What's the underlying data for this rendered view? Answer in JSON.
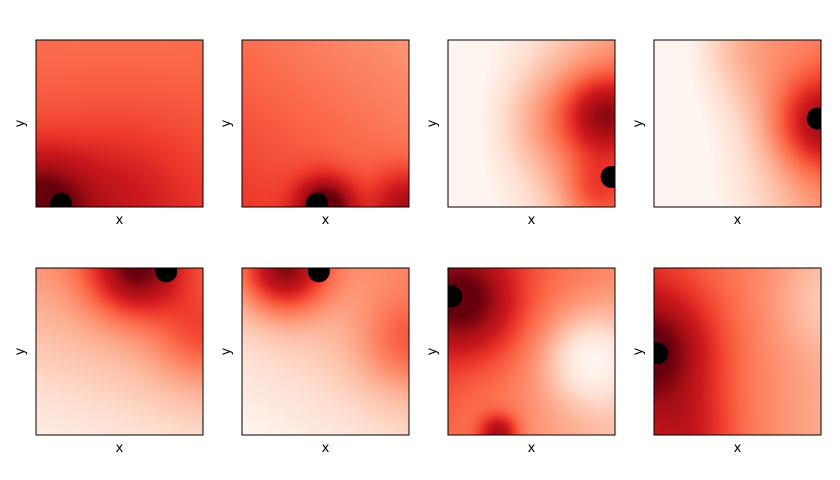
{
  "chart_data": [
    {
      "type": "heatmap",
      "xlabel": "x",
      "ylabel": "y",
      "colormap": "Reds",
      "grid": false,
      "marker": {
        "x": 0.15,
        "y": 0.02
      },
      "base": 0.55,
      "gradient": [
        0.0,
        -0.12
      ],
      "blobs": [
        {
          "x": 0.0,
          "y": 0.0,
          "a": 0.45,
          "s": 0.22
        },
        {
          "x": 0.5,
          "y": 0.05,
          "a": 0.15,
          "s": 0.3
        }
      ]
    },
    {
      "type": "heatmap",
      "xlabel": "x",
      "ylabel": "y",
      "colormap": "Reds",
      "grid": false,
      "marker": {
        "x": 0.45,
        "y": 0.02
      },
      "base": 0.5,
      "gradient": [
        -0.12,
        -0.15
      ],
      "blobs": [
        {
          "x": 0.5,
          "y": 0.0,
          "a": 0.55,
          "s": 0.12
        },
        {
          "x": 1.0,
          "y": 0.0,
          "a": 0.35,
          "s": 0.15
        }
      ]
    },
    {
      "type": "heatmap",
      "xlabel": "x",
      "ylabel": "y",
      "colormap": "Reds",
      "grid": false,
      "marker": {
        "x": 0.98,
        "y": 0.18
      },
      "base": 0.1,
      "gradient": [
        0.45,
        0.0
      ],
      "blobs": [
        {
          "x": 0.95,
          "y": 0.55,
          "a": 0.55,
          "s": 0.18
        },
        {
          "x": 0.6,
          "y": 0.5,
          "a": 0.2,
          "s": 0.25
        },
        {
          "x": 0.9,
          "y": 0.1,
          "a": 0.3,
          "s": 0.15
        }
      ]
    },
    {
      "type": "heatmap",
      "xlabel": "x",
      "ylabel": "y",
      "colormap": "Reds",
      "grid": false,
      "marker": {
        "x": 0.98,
        "y": 0.53
      },
      "base": 0.1,
      "gradient": [
        0.55,
        0.05
      ],
      "blobs": [
        {
          "x": 1.0,
          "y": 0.5,
          "a": 0.5,
          "s": 0.2
        },
        {
          "x": 0.55,
          "y": 0.95,
          "a": 0.15,
          "s": 0.25
        }
      ]
    },
    {
      "type": "heatmap",
      "xlabel": "x",
      "ylabel": "y",
      "colormap": "Reds",
      "grid": false,
      "marker": {
        "x": 0.78,
        "y": 0.98
      },
      "base": 0.25,
      "gradient": [
        0.1,
        0.3
      ],
      "blobs": [
        {
          "x": 0.6,
          "y": 1.0,
          "a": 0.6,
          "s": 0.2
        },
        {
          "x": 1.0,
          "y": 0.6,
          "a": 0.25,
          "s": 0.2
        }
      ]
    },
    {
      "type": "heatmap",
      "xlabel": "x",
      "ylabel": "y",
      "colormap": "Reds",
      "grid": false,
      "marker": {
        "x": 0.46,
        "y": 0.98
      },
      "base": 0.2,
      "gradient": [
        0.15,
        0.25
      ],
      "blobs": [
        {
          "x": 0.25,
          "y": 1.0,
          "a": 0.65,
          "s": 0.18
        },
        {
          "x": 1.0,
          "y": 0.55,
          "a": 0.25,
          "s": 0.2
        }
      ]
    },
    {
      "type": "heatmap",
      "xlabel": "x",
      "ylabel": "y",
      "colormap": "Reds",
      "grid": false,
      "marker": {
        "x": 0.02,
        "y": 0.83
      },
      "base": 0.45,
      "gradient": [
        -0.25,
        0.15
      ],
      "blobs": [
        {
          "x": 0.1,
          "y": 0.8,
          "a": 0.45,
          "s": 0.22
        },
        {
          "x": 0.3,
          "y": 0.0,
          "a": 0.45,
          "s": 0.08
        },
        {
          "x": 0.85,
          "y": 0.45,
          "a": -0.35,
          "s": 0.2
        }
      ]
    },
    {
      "type": "heatmap",
      "xlabel": "x",
      "ylabel": "y",
      "colormap": "Reds",
      "grid": false,
      "marker": {
        "x": 0.02,
        "y": 0.49
      },
      "base": 0.45,
      "gradient": [
        -0.3,
        0.0
      ],
      "blobs": [
        {
          "x": 0.0,
          "y": 0.5,
          "a": 0.45,
          "s": 0.25
        },
        {
          "x": 0.2,
          "y": 0.0,
          "a": 0.2,
          "s": 0.2
        },
        {
          "x": 1.0,
          "y": 0.8,
          "a": -0.1,
          "s": 0.2
        }
      ]
    }
  ]
}
